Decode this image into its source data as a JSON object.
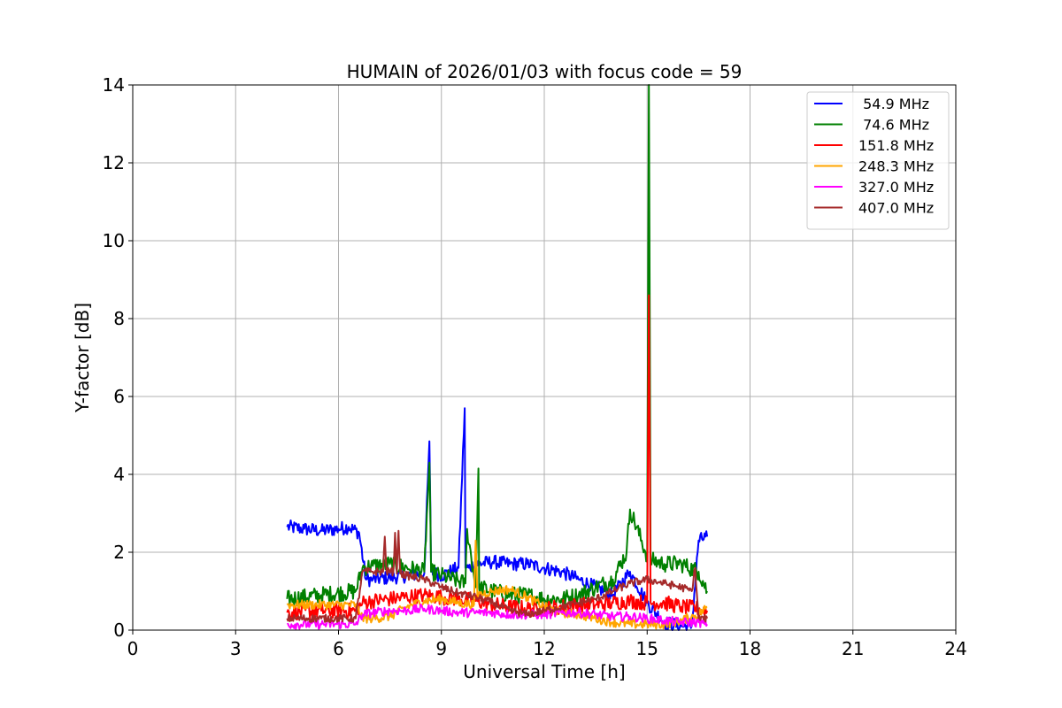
{
  "chart_data": {
    "type": "line",
    "title": "HUMAIN of 2026/01/03 with focus code = 59",
    "xlabel": "Universal Time [h]",
    "ylabel": "Y-factor [dB]",
    "xlim": [
      0,
      24
    ],
    "ylim": [
      0,
      14
    ],
    "xticks": [
      0,
      3,
      6,
      9,
      12,
      15,
      18,
      21,
      24
    ],
    "yticks": [
      0,
      2,
      4,
      6,
      8,
      10,
      12,
      14
    ],
    "xtick_labels": [
      "0",
      "3",
      "6",
      "9",
      "12",
      "15",
      "18",
      "21",
      "24"
    ],
    "ytick_labels": [
      "0",
      "2",
      "4",
      "6",
      "8",
      "10",
      "12",
      "14"
    ],
    "grid": true,
    "legend_position": "top-right",
    "series": [
      {
        "name": " 54.9 MHz",
        "color": "#0000ff",
        "noise": 0.18,
        "x": [
          4.5,
          5.0,
          5.5,
          6.0,
          6.3,
          6.6,
          6.8,
          7.0,
          7.5,
          8.0,
          8.5,
          8.65,
          8.7,
          9.0,
          9.5,
          9.68,
          9.7,
          9.8,
          10.0,
          10.5,
          11.0,
          11.5,
          12.0,
          12.5,
          13.0,
          13.5,
          14.0,
          14.5,
          15.0,
          15.5,
          16.0,
          16.3,
          16.5,
          16.75
        ],
        "y": [
          2.65,
          2.6,
          2.55,
          2.6,
          2.65,
          2.5,
          1.3,
          1.3,
          1.35,
          1.4,
          1.45,
          4.85,
          1.5,
          1.4,
          1.6,
          5.7,
          1.6,
          1.6,
          1.7,
          1.75,
          1.7,
          1.7,
          1.6,
          1.5,
          1.3,
          1.1,
          0.9,
          1.5,
          0.7,
          0.2,
          0.1,
          0.1,
          2.3,
          2.4
        ]
      },
      {
        "name": " 74.6 MHz",
        "color": "#008000",
        "noise": 0.22,
        "x": [
          4.5,
          5.5,
          6.5,
          6.7,
          7.0,
          7.5,
          8.0,
          8.5,
          8.65,
          8.7,
          9.0,
          9.7,
          9.75,
          10.0,
          10.08,
          10.1,
          10.5,
          11.0,
          11.5,
          12.0,
          12.5,
          13.0,
          13.5,
          14.0,
          14.4,
          14.5,
          15.0,
          15.05,
          15.1,
          15.5,
          16.0,
          16.5,
          16.75
        ],
        "y": [
          0.8,
          0.9,
          1.0,
          1.6,
          1.65,
          1.7,
          1.6,
          1.5,
          4.3,
          1.5,
          1.4,
          1.2,
          2.6,
          1.1,
          4.15,
          1.1,
          1.0,
          0.9,
          0.9,
          0.8,
          0.8,
          0.9,
          1.1,
          1.3,
          2.0,
          3.1,
          1.9,
          14.0,
          1.8,
          1.7,
          1.7,
          1.5,
          1.0
        ]
      },
      {
        "name": "151.8 MHz",
        "color": "#ff0000",
        "noise": 0.2,
        "x": [
          4.5,
          5.5,
          6.5,
          6.7,
          7.0,
          7.5,
          8.0,
          8.5,
          9.0,
          9.5,
          10.0,
          10.5,
          11.0,
          11.5,
          12.0,
          12.5,
          13.0,
          13.5,
          14.0,
          14.5,
          15.0,
          15.05,
          15.1,
          15.5,
          16.0,
          16.5,
          16.75
        ],
        "y": [
          0.45,
          0.5,
          0.5,
          0.7,
          0.75,
          0.8,
          0.85,
          0.9,
          0.85,
          0.8,
          0.75,
          0.65,
          0.6,
          0.55,
          0.55,
          0.6,
          0.65,
          0.65,
          0.7,
          0.75,
          0.7,
          8.6,
          0.7,
          0.7,
          0.6,
          0.55,
          0.5
        ]
      },
      {
        "name": "248.3 MHz",
        "color": "#ffa500",
        "noise": 0.12,
        "x": [
          4.5,
          5.5,
          6.5,
          6.7,
          7.0,
          7.5,
          8.0,
          8.5,
          9.0,
          9.5,
          9.95,
          10.0,
          10.05,
          10.5,
          11.0,
          11.5,
          12.0,
          12.5,
          13.0,
          13.5,
          14.0,
          14.5,
          15.0,
          15.5,
          16.0,
          16.5,
          16.75
        ],
        "y": [
          0.65,
          0.65,
          0.65,
          0.3,
          0.3,
          0.35,
          0.6,
          0.75,
          0.8,
          0.7,
          0.65,
          2.3,
          0.9,
          1.0,
          1.05,
          0.85,
          0.6,
          0.45,
          0.4,
          0.3,
          0.2,
          0.15,
          0.15,
          0.15,
          0.25,
          0.4,
          0.6
        ]
      },
      {
        "name": "327.0 MHz",
        "color": "#ff00ff",
        "noise": 0.12,
        "x": [
          4.5,
          5.5,
          6.5,
          6.7,
          7.0,
          7.5,
          8.0,
          8.5,
          9.0,
          9.5,
          10.0,
          10.5,
          11.0,
          11.5,
          12.0,
          12.5,
          13.0,
          13.5,
          14.0,
          14.5,
          15.0,
          15.5,
          16.0,
          16.5,
          16.75
        ],
        "y": [
          0.15,
          0.15,
          0.15,
          0.4,
          0.45,
          0.5,
          0.5,
          0.55,
          0.5,
          0.45,
          0.45,
          0.45,
          0.4,
          0.4,
          0.4,
          0.45,
          0.45,
          0.4,
          0.35,
          0.35,
          0.3,
          0.25,
          0.2,
          0.2,
          0.15
        ]
      },
      {
        "name": "407.0 MHz",
        "color": "#a52a2a",
        "noise": 0.1,
        "x": [
          4.5,
          5.5,
          6.5,
          6.7,
          7.0,
          7.3,
          7.35,
          7.4,
          7.6,
          7.65,
          7.7,
          7.75,
          7.8,
          8.0,
          8.5,
          9.0,
          9.5,
          10.0,
          10.5,
          11.0,
          11.5,
          12.0,
          12.5,
          13.0,
          13.5,
          14.0,
          14.5,
          15.0,
          15.5,
          16.0,
          16.3,
          16.4,
          16.5,
          16.75
        ],
        "y": [
          0.3,
          0.3,
          0.3,
          1.5,
          1.5,
          1.5,
          2.4,
          1.5,
          1.5,
          2.5,
          1.45,
          2.55,
          1.45,
          1.4,
          1.3,
          1.1,
          0.95,
          0.85,
          0.7,
          0.5,
          0.4,
          0.5,
          0.6,
          0.7,
          0.8,
          1.0,
          1.2,
          1.3,
          1.2,
          1.1,
          1.0,
          1.6,
          0.3,
          0.3
        ]
      }
    ]
  }
}
